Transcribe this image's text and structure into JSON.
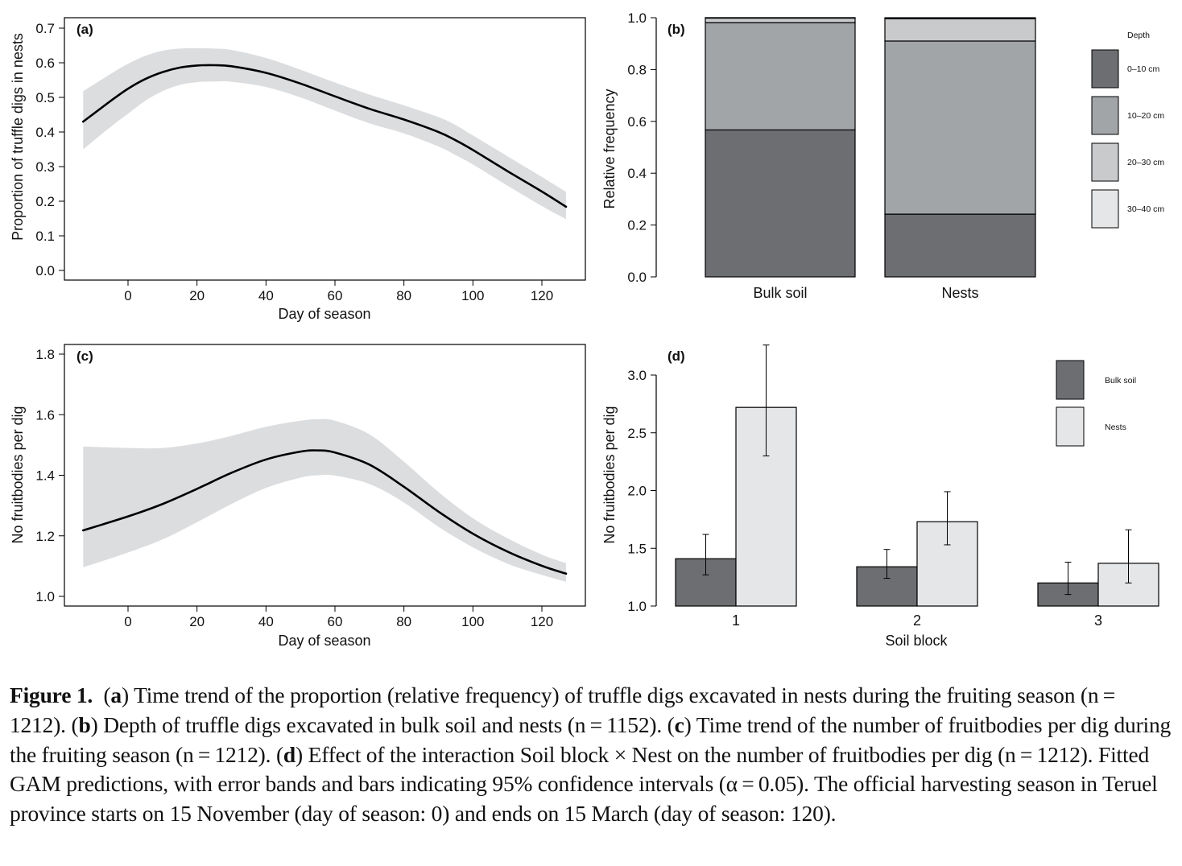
{
  "colors": {
    "band": "#dcdddf",
    "line": "#000000",
    "depth_0_10": "#6d6e72",
    "depth_10_20": "#a2a5a8",
    "depth_20_30": "#c9cacc",
    "depth_30_40": "#e5e6e8",
    "bulk_soil": "#6d6e72",
    "nests": "#e5e6e8"
  },
  "chart_data": [
    {
      "panel": "(a)",
      "type": "line",
      "xlabel": "Day of season",
      "ylabel": "Proportion of truffle digs in nests",
      "xlim": [
        -18.5,
        132.5
      ],
      "ylim": [
        -0.008,
        0.75
      ],
      "xticks": [
        "0",
        "20",
        "40",
        "60",
        "80",
        "100",
        "120"
      ],
      "xtick_values": [
        0,
        20,
        40,
        60,
        80,
        100,
        120
      ],
      "yticks": [
        "0.0",
        "0.1",
        "0.2",
        "0.3",
        "0.4",
        "0.5",
        "0.6",
        "0.7"
      ],
      "ytick_values": [
        0,
        0.1,
        0.2,
        0.3,
        0.4,
        0.5,
        0.6,
        0.7
      ],
      "grid": false,
      "series": [
        {
          "name": "fitted",
          "x": [
            -13,
            -5,
            0,
            5,
            10,
            15,
            20,
            25,
            30,
            40,
            50,
            60,
            70,
            80,
            90,
            95,
            100,
            110,
            120,
            127
          ],
          "y": [
            0.43,
            0.49,
            0.525,
            0.553,
            0.573,
            0.586,
            0.592,
            0.593,
            0.59,
            0.571,
            0.54,
            0.503,
            0.467,
            0.436,
            0.4,
            0.376,
            0.348,
            0.287,
            0.228,
            0.184
          ],
          "lower": [
            0.35,
            0.415,
            0.453,
            0.49,
            0.518,
            0.536,
            0.544,
            0.546,
            0.545,
            0.53,
            0.5,
            0.462,
            0.425,
            0.396,
            0.358,
            0.333,
            0.306,
            0.245,
            0.186,
            0.148
          ],
          "upper": [
            0.518,
            0.568,
            0.597,
            0.62,
            0.635,
            0.641,
            0.642,
            0.641,
            0.637,
            0.614,
            0.58,
            0.543,
            0.508,
            0.477,
            0.443,
            0.42,
            0.39,
            0.33,
            0.27,
            0.227
          ]
        }
      ]
    },
    {
      "panel": "(b)",
      "type": "bar",
      "stacked": true,
      "xlabel": "",
      "ylabel": "Relative frequency",
      "ylim": [
        0,
        1.0
      ],
      "yticks": [
        "0.0",
        "0.2",
        "0.4",
        "0.6",
        "0.8",
        "1.0"
      ],
      "ytick_values": [
        0,
        0.2,
        0.4,
        0.6,
        0.8,
        1.0
      ],
      "categories": [
        "Bulk soil",
        "Nests"
      ],
      "legend_title": "Depth",
      "legend_position": "right",
      "series": [
        {
          "name": "0–10 cm",
          "values": [
            0.567,
            0.242
          ]
        },
        {
          "name": "10–20 cm",
          "values": [
            0.414,
            0.668
          ]
        },
        {
          "name": "20–30 cm",
          "values": [
            0.019,
            0.086
          ]
        },
        {
          "name": "30–40 cm",
          "values": [
            0.0,
            0.004
          ]
        }
      ]
    },
    {
      "panel": "(c)",
      "type": "line",
      "xlabel": "Day of season",
      "ylabel": "No fruitbodies per dig",
      "xlim": [
        -18.5,
        132.5
      ],
      "ylim": [
        0.97,
        1.835
      ],
      "xticks": [
        "0",
        "20",
        "40",
        "60",
        "80",
        "100",
        "120"
      ],
      "xtick_values": [
        0,
        20,
        40,
        60,
        80,
        100,
        120
      ],
      "yticks": [
        "1.0",
        "1.2",
        "1.4",
        "1.6",
        "1.8"
      ],
      "ytick_values": [
        1.0,
        1.2,
        1.4,
        1.6,
        1.8
      ],
      "grid": false,
      "series": [
        {
          "name": "fitted",
          "x": [
            -13,
            0,
            10,
            20,
            30,
            40,
            50,
            55,
            60,
            70,
            80,
            90,
            100,
            110,
            120,
            127
          ],
          "y": [
            1.218,
            1.264,
            1.305,
            1.355,
            1.408,
            1.452,
            1.478,
            1.482,
            1.475,
            1.435,
            1.362,
            1.28,
            1.207,
            1.148,
            1.101,
            1.075
          ],
          "lower": [
            1.096,
            1.145,
            1.188,
            1.245,
            1.305,
            1.358,
            1.392,
            1.4,
            1.399,
            1.371,
            1.31,
            1.23,
            1.162,
            1.108,
            1.071,
            1.048
          ],
          "upper": [
            1.495,
            1.49,
            1.49,
            1.505,
            1.53,
            1.56,
            1.58,
            1.585,
            1.58,
            1.535,
            1.445,
            1.345,
            1.258,
            1.192,
            1.138,
            1.11
          ]
        }
      ]
    },
    {
      "panel": "(d)",
      "type": "bar",
      "xlabel": "Soil block",
      "ylabel": "No fruitbodies per dig",
      "ylim": [
        1.0,
        3.3
      ],
      "yticks": [
        "1.0",
        "1.5",
        "2.0",
        "2.5",
        "3.0"
      ],
      "ytick_values": [
        1.0,
        1.5,
        2.0,
        2.5,
        3.0
      ],
      "categories": [
        "1",
        "2",
        "3"
      ],
      "legend_position": "top-right",
      "series": [
        {
          "name": "Bulk soil",
          "values": [
            1.41,
            1.34,
            1.2
          ],
          "ci_low": [
            1.27,
            1.24,
            1.1
          ],
          "ci_high": [
            1.62,
            1.49,
            1.38
          ]
        },
        {
          "name": "Nests",
          "values": [
            2.72,
            1.73,
            1.37
          ],
          "ci_low": [
            2.3,
            1.53,
            1.2
          ],
          "ci_high": [
            3.26,
            1.99,
            1.66
          ]
        }
      ]
    }
  ],
  "caption": {
    "label": "Figure 1.",
    "parts": [
      {
        "b": "a",
        "t": ") Time trend of the proportion (relative frequency) of truffle digs excavated in nests during the fruiting season (n = 1212). ("
      },
      {
        "b": "b",
        "t": ") Depth of truffle digs excavated in bulk soil and nests (n = 1152). ("
      },
      {
        "b": "c",
        "t": ") Time trend of the number of fruitbodies per dig during the fruiting season (n = 1212). ("
      },
      {
        "b": "d",
        "t": ") Effect of the interaction Soil block × Nest on the number of fruitbodies per dig (n = 1212). Fitted GAM predictions, with error bands and bars indicating 95% confidence intervals (α = 0.05). The official harvesting season in Teruel province starts on 15 November (day of season: 0) and ends on 15 March (day of season: 120)."
      }
    ]
  }
}
